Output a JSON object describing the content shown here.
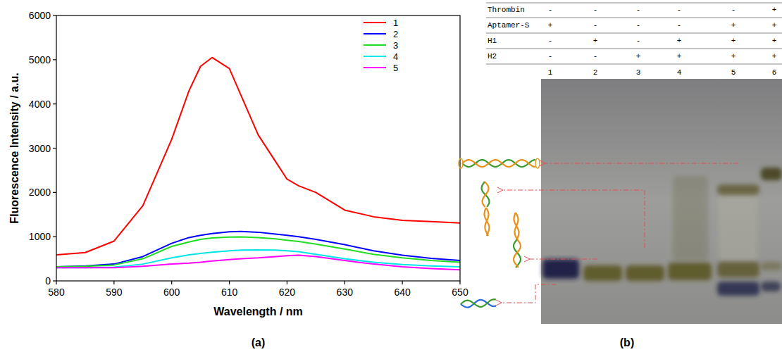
{
  "chart_data": {
    "type": "line",
    "xlabel": "Wavelength / nm",
    "ylabel": "Fluorescence Intensity / a.u.",
    "x": [
      580,
      585,
      590,
      595,
      600,
      603,
      605,
      607,
      610,
      612,
      615,
      618,
      620,
      622,
      625,
      630,
      635,
      640,
      645,
      650
    ],
    "series": [
      {
        "name": "1",
        "color": "#ff0000",
        "values": [
          590,
          640,
          900,
          1700,
          3200,
          4300,
          4850,
          5050,
          4800,
          4200,
          3300,
          2700,
          2300,
          2150,
          2000,
          1600,
          1450,
          1370,
          1340,
          1310
        ]
      },
      {
        "name": "2",
        "color": "#0000ff",
        "values": [
          320,
          340,
          380,
          550,
          850,
          980,
          1030,
          1070,
          1110,
          1120,
          1100,
          1060,
          1030,
          1000,
          940,
          820,
          680,
          580,
          510,
          460
        ]
      },
      {
        "name": "3",
        "color": "#22dd22",
        "values": [
          320,
          330,
          360,
          500,
          780,
          880,
          940,
          970,
          990,
          995,
          980,
          950,
          920,
          890,
          830,
          720,
          600,
          520,
          460,
          420
        ]
      },
      {
        "name": "4",
        "color": "#00e5e5",
        "values": [
          300,
          300,
          310,
          380,
          520,
          590,
          620,
          650,
          680,
          695,
          700,
          695,
          680,
          660,
          600,
          500,
          420,
          370,
          340,
          320
        ]
      },
      {
        "name": "5",
        "color": "#ff00ff",
        "values": [
          300,
          300,
          300,
          330,
          380,
          400,
          420,
          450,
          480,
          500,
          520,
          550,
          570,
          580,
          550,
          460,
          380,
          320,
          280,
          250
        ]
      }
    ],
    "xlim": [
      580,
      650
    ],
    "xticks": [
      580,
      590,
      600,
      610,
      620,
      630,
      640,
      650
    ],
    "ylim": [
      0,
      6000
    ],
    "yticks": [
      0,
      1000,
      2000,
      3000,
      4000,
      5000,
      6000
    ],
    "grid": false,
    "legend": "upper right"
  },
  "gel": {
    "rows": [
      {
        "label": "Thrombin",
        "values": [
          "-",
          "-",
          "-",
          "-",
          "-",
          "+"
        ]
      },
      {
        "label": "Aptamer-S",
        "values": [
          "+",
          "-",
          "-",
          "-",
          "+",
          "+"
        ]
      },
      {
        "label": "H1",
        "values": [
          "-",
          "+",
          "-",
          "+",
          "+",
          "+"
        ]
      },
      {
        "label": "H2",
        "values": [
          "-",
          "-",
          "+",
          "+",
          "+",
          "+"
        ]
      }
    ],
    "lanes": [
      1,
      2,
      3,
      4,
      5,
      6
    ]
  },
  "panel_labels": [
    "(a)",
    "(b)"
  ]
}
